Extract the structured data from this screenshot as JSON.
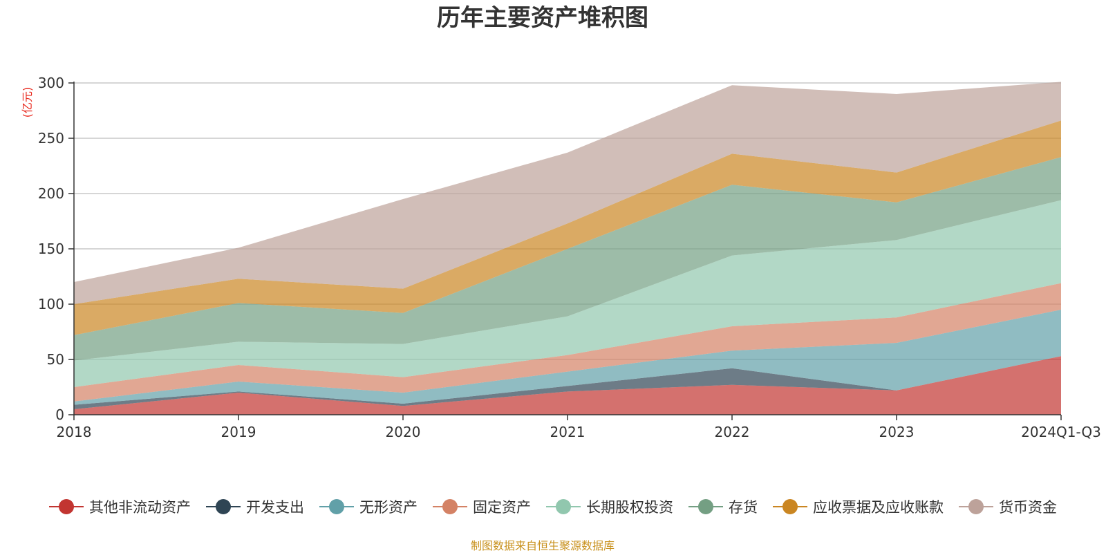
{
  "chart_data": {
    "type": "area",
    "stacked": true,
    "title": "历年主要资产堆积图",
    "unit": "(亿元)",
    "x": [
      "2018",
      "2019",
      "2020",
      "2021",
      "2022",
      "2023",
      "2024Q1-Q3"
    ],
    "y_ticks": [
      "0",
      "50",
      "100",
      "150",
      "200",
      "250",
      "300"
    ],
    "ylim": [
      0,
      300
    ],
    "grid": true,
    "legend_position": "bottom",
    "series": [
      {
        "name": "其他非流动资产",
        "color": "#c23531",
        "values": [
          5,
          20,
          8,
          21,
          27,
          22,
          53
        ]
      },
      {
        "name": "开发支出",
        "color": "#2f4554",
        "values": [
          4,
          1,
          2,
          5,
          15,
          0,
          0
        ]
      },
      {
        "name": "无形资产",
        "color": "#61a0a8",
        "values": [
          3,
          9,
          10,
          13,
          16,
          43,
          42
        ]
      },
      {
        "name": "固定资产",
        "color": "#d48265",
        "values": [
          13,
          15,
          14,
          15,
          22,
          23,
          24
        ]
      },
      {
        "name": "长期股权投资",
        "color": "#91c7ae",
        "values": [
          24,
          21,
          30,
          35,
          64,
          70,
          75
        ]
      },
      {
        "name": "存货",
        "color": "#749f83",
        "values": [
          23,
          35,
          28,
          61,
          64,
          34,
          39
        ]
      },
      {
        "name": "应收票据及应收账款",
        "color": "#ca8622",
        "values": [
          28,
          22,
          22,
          23,
          28,
          27,
          33
        ]
      },
      {
        "name": "货币资金",
        "color": "#bda29a",
        "values": [
          20,
          28,
          81,
          64,
          62,
          71,
          35
        ]
      }
    ]
  },
  "footer": {
    "source": "制图数据来自恒生聚源数据库"
  }
}
